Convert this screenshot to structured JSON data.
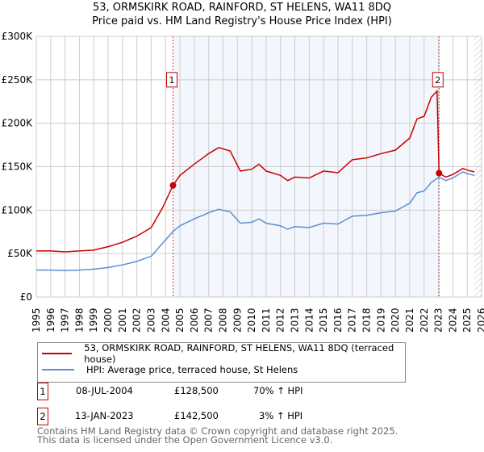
{
  "chart_data": {
    "type": "line",
    "title": "53, ORMSKIRK ROAD, RAINFORD, ST HELENS, WA11 8DQ",
    "subtitle": "Price paid vs. HM Land Registry's House Price Index (HPI)",
    "xlim": [
      1995,
      2026
    ],
    "ylim": [
      0,
      300000
    ],
    "x_ticks": [
      "1995",
      "1996",
      "1997",
      "1998",
      "1999",
      "2000",
      "2001",
      "2002",
      "2003",
      "2004",
      "2005",
      "2006",
      "2007",
      "2008",
      "2009",
      "2010",
      "2011",
      "2012",
      "2013",
      "2014",
      "2015",
      "2016",
      "2017",
      "2018",
      "2019",
      "2020",
      "2021",
      "2022",
      "2023",
      "2024",
      "2025",
      "2026"
    ],
    "y_ticks": [
      {
        "v": 0,
        "label": "£0"
      },
      {
        "v": 50000,
        "label": "£50K"
      },
      {
        "v": 100000,
        "label": "£100K"
      },
      {
        "v": 150000,
        "label": "£150K"
      },
      {
        "v": 200000,
        "label": "£200K"
      },
      {
        "v": 250000,
        "label": "£250K"
      },
      {
        "v": 300000,
        "label": "£300K"
      }
    ],
    "series": [
      {
        "name": "53, ORMSKIRK ROAD, RAINFORD, ST HELENS, WA11 8DQ (terraced house)",
        "color": "#cc0000",
        "x": [
          1995,
          1996,
          1997,
          1998,
          1999,
          2000,
          2001,
          2002,
          2003,
          2003.8,
          2004.52,
          2005,
          2006,
          2007,
          2007.7,
          2008.5,
          2009.2,
          2010,
          2010.5,
          2011,
          2012,
          2012.5,
          2013,
          2014,
          2015,
          2016,
          2017,
          2018,
          2019,
          2020,
          2021,
          2021.5,
          2022,
          2022.5,
          2022.9,
          2023.04,
          2023.5,
          2024,
          2024.7,
          2025,
          2025.5
        ],
        "y": [
          53000,
          53000,
          52000,
          53000,
          54000,
          58000,
          63000,
          70000,
          80000,
          103000,
          128500,
          140000,
          153000,
          165000,
          172000,
          168000,
          145000,
          147000,
          153000,
          145000,
          140000,
          134000,
          138000,
          137000,
          145000,
          143000,
          158000,
          160000,
          165000,
          169000,
          183000,
          205000,
          208000,
          230000,
          237000,
          142500,
          138000,
          141000,
          148000,
          146000,
          144000
        ]
      },
      {
        "name": "HPI: Average price, terraced house, St Helens",
        "color": "#5b8fd4",
        "x": [
          1995,
          1996,
          1997,
          1998,
          1999,
          2000,
          2001,
          2002,
          2003,
          2003.8,
          2004.52,
          2005,
          2006,
          2007,
          2007.7,
          2008.5,
          2009.2,
          2010,
          2010.5,
          2011,
          2012,
          2012.5,
          2013,
          2014,
          2015,
          2016,
          2017,
          2018,
          2019,
          2020,
          2021,
          2021.5,
          2022,
          2022.5,
          2023.04,
          2023.5,
          2024,
          2024.7,
          2025,
          2025.5
        ],
        "y": [
          31000,
          31000,
          30500,
          31000,
          32000,
          34000,
          37000,
          41000,
          47000,
          62000,
          75500,
          82000,
          90000,
          97000,
          101000,
          98000,
          85000,
          86000,
          90000,
          85000,
          82000,
          78000,
          81000,
          80000,
          85000,
          84000,
          93000,
          94000,
          97000,
          99000,
          108000,
          120000,
          122000,
          132000,
          138000,
          134000,
          137000,
          144000,
          142000,
          140000
        ]
      }
    ],
    "sales": [
      {
        "n": "1",
        "x": 2004.52,
        "y": 128500
      },
      {
        "n": "2",
        "x": 2023.04,
        "y": 142500
      }
    ]
  },
  "legend": {
    "property": "53, ORMSKIRK ROAD, RAINFORD, ST HELENS, WA11 8DQ (terraced house)",
    "hpi": "HPI: Average price, terraced house, St Helens"
  },
  "transactions": [
    {
      "n": "1",
      "date": "08-JUL-2004",
      "price": "£128,500",
      "hpi": "70% ↑ HPI"
    },
    {
      "n": "2",
      "date": "13-JAN-2023",
      "price": "£142,500",
      "hpi": "3% ↑ HPI"
    }
  ],
  "footer": {
    "line1": "Contains HM Land Registry data © Crown copyright and database right 2025.",
    "line2": "This data is licensed under the Open Government Licence v3.0."
  }
}
